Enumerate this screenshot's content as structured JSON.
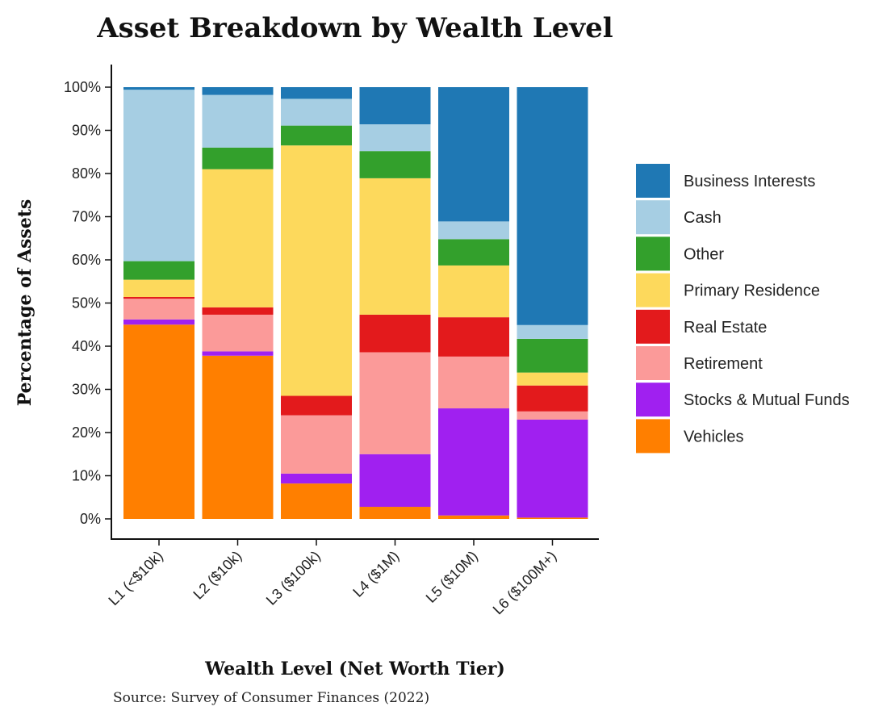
{
  "chart_data": {
    "type": "bar",
    "stacked": true,
    "normalized": true,
    "title": "Asset Breakdown by Wealth Level",
    "xlabel": "Wealth Level (Net Worth Tier)",
    "ylabel": "Percentage of Assets",
    "caption": "Source: Survey of Consumer Finances (2022)",
    "ylim": [
      0,
      100
    ],
    "yticks": [
      "0%",
      "10%",
      "20%",
      "30%",
      "40%",
      "50%",
      "60%",
      "70%",
      "80%",
      "90%",
      "100%"
    ],
    "categories": [
      "L1 (<$10k)",
      "L2 ($10k)",
      "L3 ($100k)",
      "L4 ($1M)",
      "L5 ($10M)",
      "L6 ($100M+)"
    ],
    "legend_position": "right",
    "series": [
      {
        "name": "Vehicles",
        "color": "#ff7f00",
        "values": [
          45.0,
          37.8,
          8.2,
          2.8,
          0.8,
          0.3
        ]
      },
      {
        "name": "Stocks & Mutual Funds",
        "color": "#a020f0",
        "values": [
          1.2,
          1.0,
          2.3,
          12.2,
          24.8,
          22.7
        ]
      },
      {
        "name": "Retirement",
        "color": "#fb9a99",
        "values": [
          4.8,
          8.5,
          13.5,
          23.6,
          12.0,
          1.9
        ]
      },
      {
        "name": "Real Estate",
        "color": "#e31a1c",
        "values": [
          0.4,
          1.7,
          4.5,
          8.7,
          9.1,
          6.0
        ]
      },
      {
        "name": "Primary Residence",
        "color": "#fdd95c",
        "values": [
          4.0,
          32.0,
          58.0,
          31.6,
          12.0,
          3.0
        ]
      },
      {
        "name": "Other",
        "color": "#33a02c",
        "values": [
          4.3,
          5.0,
          4.6,
          6.3,
          6.1,
          7.8
        ]
      },
      {
        "name": "Cash",
        "color": "#a6cee3",
        "values": [
          39.7,
          12.2,
          6.2,
          6.2,
          4.1,
          3.2
        ]
      },
      {
        "name": "Business Interests",
        "color": "#1f78b4",
        "values": [
          0.6,
          1.8,
          2.7,
          8.6,
          31.1,
          55.1
        ]
      }
    ]
  }
}
